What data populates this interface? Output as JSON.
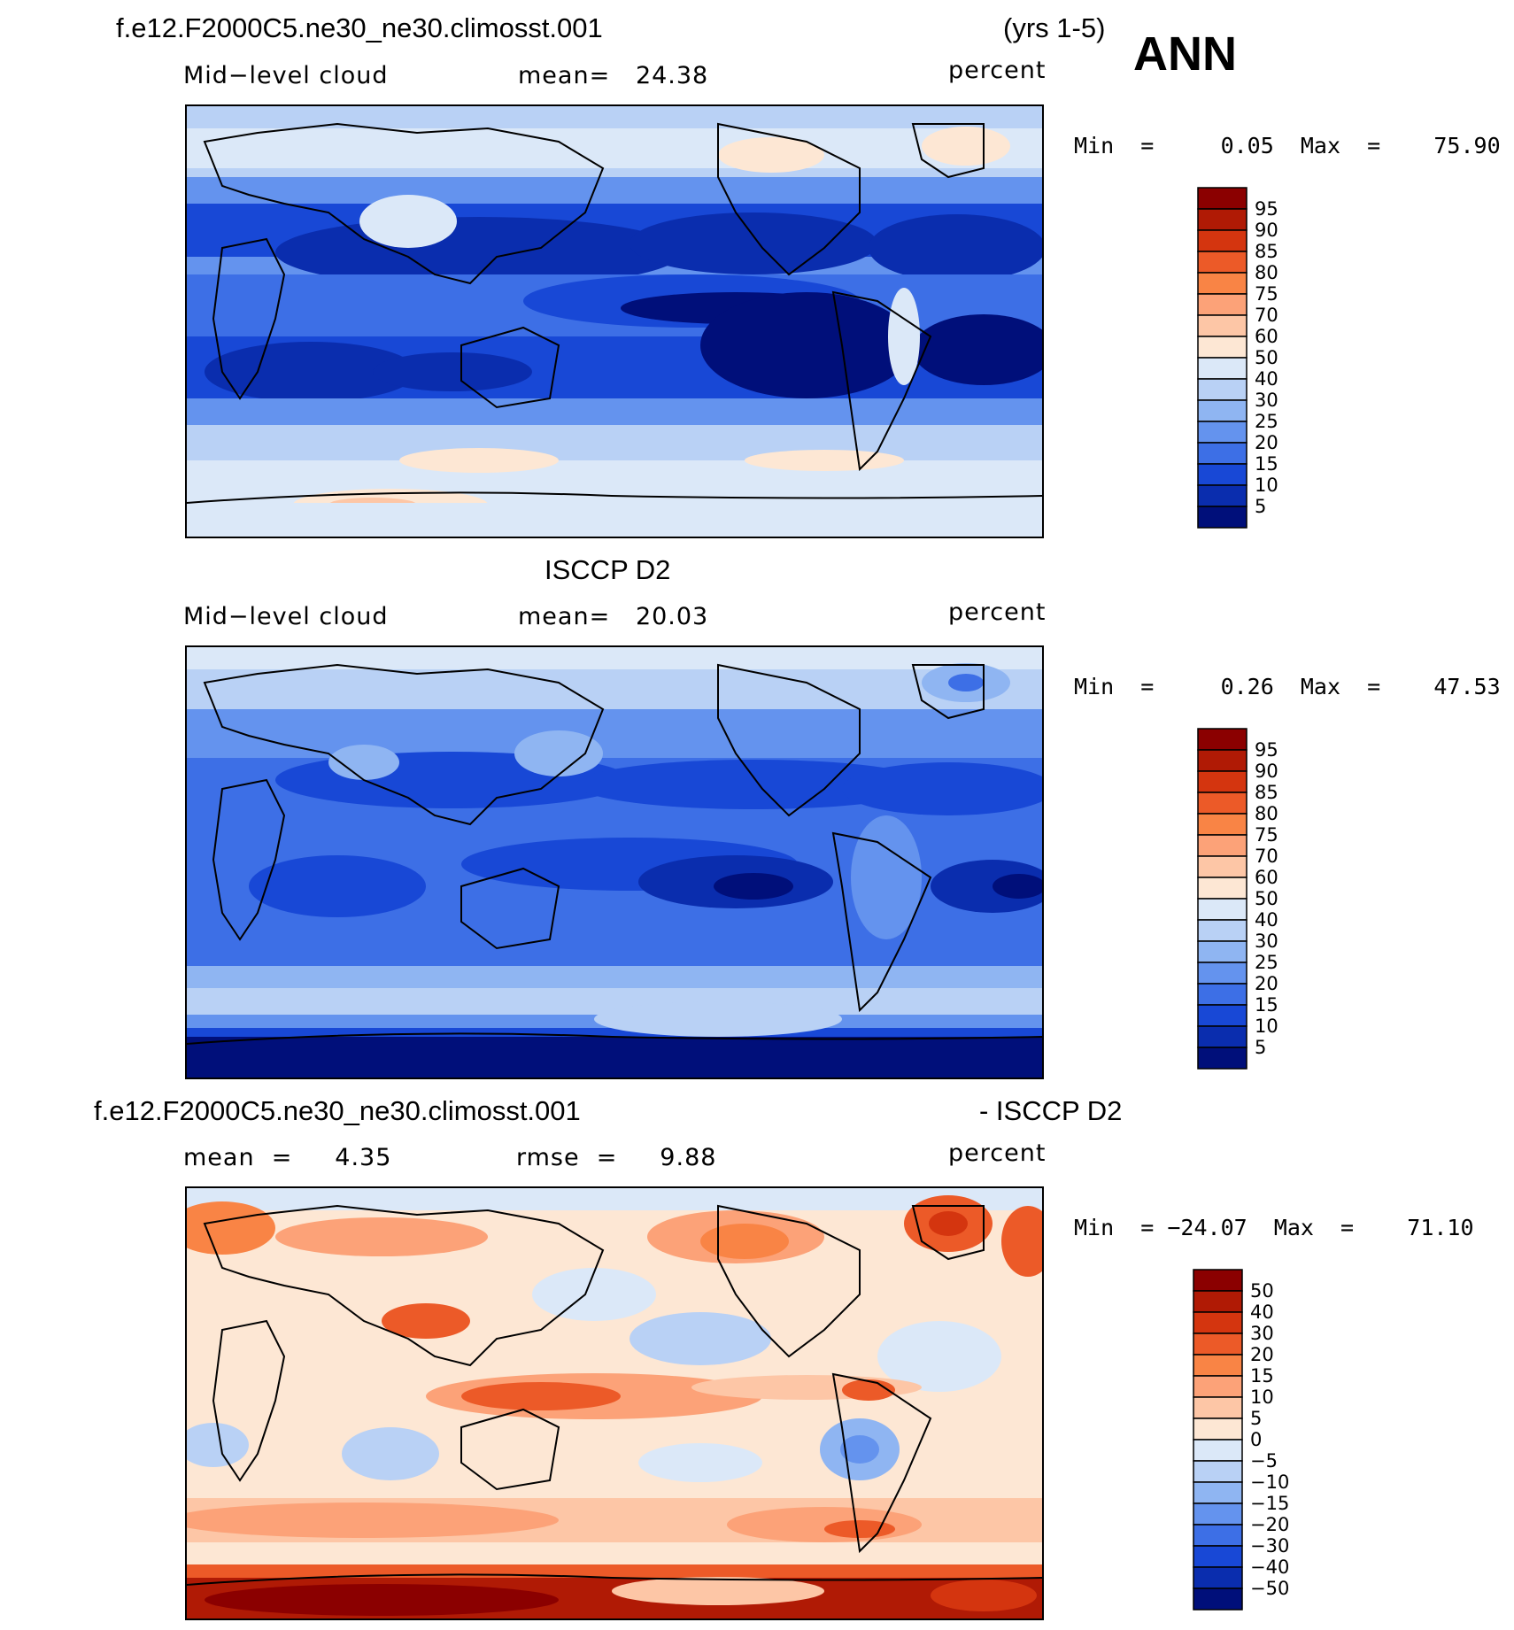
{
  "header": {
    "case_title": "f.e12.F2000C5.ne30_ne30.climosst.001",
    "years": "(yrs 1-5)",
    "season": "ANN"
  },
  "panels": [
    {
      "title": "",
      "field": "Mid−level cloud",
      "stat_text": "mean=   24.38",
      "units": "percent",
      "minmax_text": "Min  =     0.05  Max  =    75.90",
      "min": 0.05,
      "max": 75.9,
      "mean": 24.38
    },
    {
      "title": "ISCCP D2",
      "field": "Mid−level cloud",
      "stat_text": "mean=   20.03",
      "units": "percent",
      "minmax_text": "Min  =     0.26  Max  =    47.53",
      "min": 0.26,
      "max": 47.53,
      "mean": 20.03
    },
    {
      "title_left": "f.e12.F2000C5.ne30_ne30.climosst.001",
      "title_right": "- ISCCP D2",
      "field": "mean  =     4.35",
      "stat_text": "rmse  =     9.88",
      "units": "percent",
      "minmax_text": "Min  = −24.07  Max  =    71.10",
      "min": -24.07,
      "max": 71.1,
      "mean": 4.35,
      "rmse": 9.88
    }
  ],
  "colorbars": {
    "abs": {
      "labels": [
        "95",
        "90",
        "85",
        "80",
        "75",
        "70",
        "60",
        "50",
        "40",
        "30",
        "25",
        "20",
        "15",
        "10",
        "5"
      ],
      "colors": [
        "#8b0000",
        "#b01a05",
        "#d4350f",
        "#ec5a28",
        "#f98445",
        "#fca278",
        "#fdc6a6",
        "#fde7d4",
        "#dbe8f8",
        "#b9d1f5",
        "#8fb5f2",
        "#6493ee",
        "#3d6fe6",
        "#1848d6",
        "#0a2dae",
        "#000f7a"
      ]
    },
    "diff": {
      "labels": [
        "50",
        "40",
        "30",
        "20",
        "15",
        "10",
        "5",
        "0",
        "−5",
        "−10",
        "−15",
        "−20",
        "−30",
        "−40",
        "−50"
      ],
      "colors": [
        "#8b0000",
        "#b01a05",
        "#d4350f",
        "#ec5a28",
        "#f98445",
        "#fca278",
        "#fdc6a6",
        "#fde7d4",
        "#dbe8f8",
        "#b9d1f5",
        "#8fb5f2",
        "#6493ee",
        "#3d6fe6",
        "#1848d6",
        "#0a2dae",
        "#000f7a"
      ]
    }
  },
  "chart_data": [
    {
      "type": "heatmap",
      "title": "f.e12.F2000C5.ne30_ne30.climosst.001 (yrs 1-5) ANN",
      "variable": "Mid-level cloud",
      "units": "percent",
      "mean": 24.38,
      "min": 0.05,
      "max": 75.9,
      "levels": [
        5,
        10,
        15,
        20,
        25,
        30,
        40,
        50,
        60,
        70,
        75,
        80,
        85,
        90,
        95
      ]
    },
    {
      "type": "heatmap",
      "title": "ISCCP D2",
      "variable": "Mid-level cloud",
      "units": "percent",
      "mean": 20.03,
      "min": 0.26,
      "max": 47.53,
      "levels": [
        5,
        10,
        15,
        20,
        25,
        30,
        40,
        50,
        60,
        70,
        75,
        80,
        85,
        90,
        95
      ]
    },
    {
      "type": "heatmap",
      "title": "f.e12.F2000C5.ne30_ne30.climosst.001 - ISCCP D2",
      "units": "percent",
      "mean": 4.35,
      "rmse": 9.88,
      "min": -24.07,
      "max": 71.1,
      "levels": [
        -50,
        -40,
        -30,
        -20,
        -15,
        -10,
        -5,
        0,
        5,
        10,
        15,
        20,
        30,
        40,
        50
      ]
    }
  ]
}
